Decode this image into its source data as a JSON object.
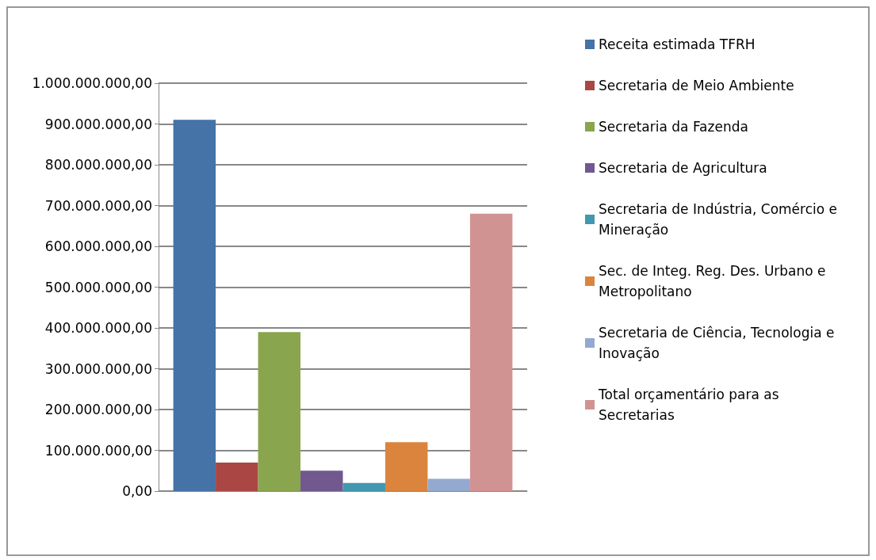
{
  "chart_data": {
    "type": "bar",
    "categories": [
      null
    ],
    "series": [
      {
        "name": "Receita estimada TFRH",
        "color": "#4572a7",
        "values": [
          910000000
        ]
      },
      {
        "name": "Secretaria de Meio Ambiente",
        "color": "#aa4643",
        "values": [
          70000000
        ]
      },
      {
        "name": "Secretaria da Fazenda",
        "color": "#89a54e",
        "values": [
          390000000
        ]
      },
      {
        "name": "Secretaria de Agricultura",
        "color": "#71588f",
        "values": [
          50000000
        ]
      },
      {
        "name": "Secretaria de Indústria, Comércio e Mineração",
        "color": "#4198af",
        "values": [
          20000000
        ]
      },
      {
        "name": "Sec. de Integ. Reg. Des. Urbano e Metropolitano",
        "color": "#db843d",
        "values": [
          120000000
        ]
      },
      {
        "name": "Secretaria de Ciência, Tecnologia e Inovação",
        "color": "#93a9cf",
        "values": [
          30000000
        ]
      },
      {
        "name": "Total orçamentário para as Secretarias",
        "color": "#d19392",
        "values": [
          680000000
        ]
      }
    ],
    "ylim": [
      0,
      1000000000
    ],
    "yticks": [
      {
        "value": 0,
        "label": "0,00"
      },
      {
        "value": 100000000,
        "label": "100.000.000,00"
      },
      {
        "value": 200000000,
        "label": "200.000.000,00"
      },
      {
        "value": 300000000,
        "label": "300.000.000,00"
      },
      {
        "value": 400000000,
        "label": "400.000.000,00"
      },
      {
        "value": 500000000,
        "label": "500.000.000,00"
      },
      {
        "value": 600000000,
        "label": "600.000.000,00"
      },
      {
        "value": 700000000,
        "label": "700.000.000,00"
      },
      {
        "value": 800000000,
        "label": "800.000.000,00"
      },
      {
        "value": 900000000,
        "label": "900.000.000,00"
      },
      {
        "value": 1000000000,
        "label": "1.000.000.000,00"
      }
    ],
    "grid": true,
    "legend": "right"
  }
}
